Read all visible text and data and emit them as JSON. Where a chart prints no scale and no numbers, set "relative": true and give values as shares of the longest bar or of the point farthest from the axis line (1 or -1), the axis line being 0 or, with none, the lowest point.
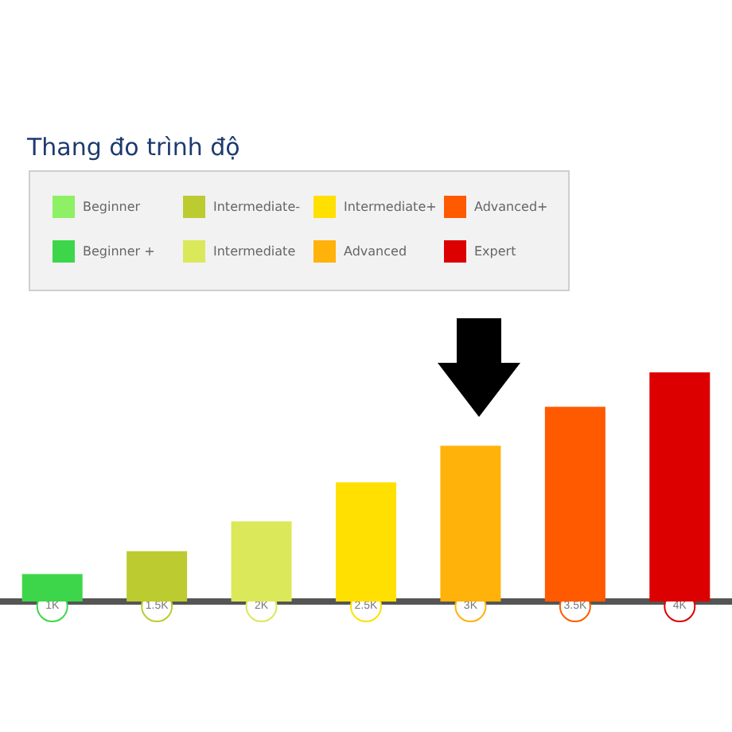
{
  "chart_data": {
    "type": "bar",
    "title": "Thang đo trình độ",
    "relative": true,
    "legend": "top left",
    "categories": [
      "1K",
      "1.5K",
      "2K",
      "2.5K",
      "3K",
      "3.5K",
      "4K"
    ],
    "series": [
      {
        "name": "Beginner",
        "color": "#8ef064",
        "values": [
          null,
          null,
          null,
          null,
          null,
          null,
          null
        ]
      },
      {
        "name": "Beginner +",
        "color": "#3dd64a",
        "values": [
          0.12,
          null,
          null,
          null,
          null,
          null,
          null
        ]
      },
      {
        "name": "Intermediate-",
        "color": "#bccb30",
        "values": [
          null,
          0.22,
          null,
          null,
          null,
          null,
          null
        ]
      },
      {
        "name": "Intermediate",
        "color": "#dbe85a",
        "values": [
          null,
          null,
          0.35,
          null,
          null,
          null,
          null
        ]
      },
      {
        "name": "Intermediate+",
        "color": "#ffe000",
        "values": [
          null,
          null,
          null,
          0.52,
          null,
          null,
          null
        ]
      },
      {
        "name": "Advanced",
        "color": "#ffb20a",
        "values": [
          null,
          null,
          null,
          null,
          0.68,
          null,
          null
        ]
      },
      {
        "name": "Advanced+",
        "color": "#ff5a00",
        "values": [
          null,
          null,
          null,
          null,
          null,
          0.85,
          null
        ]
      },
      {
        "name": "Expert",
        "color": "#dc0000",
        "values": [
          null,
          null,
          null,
          null,
          null,
          null,
          1
        ]
      }
    ]
  }
}
